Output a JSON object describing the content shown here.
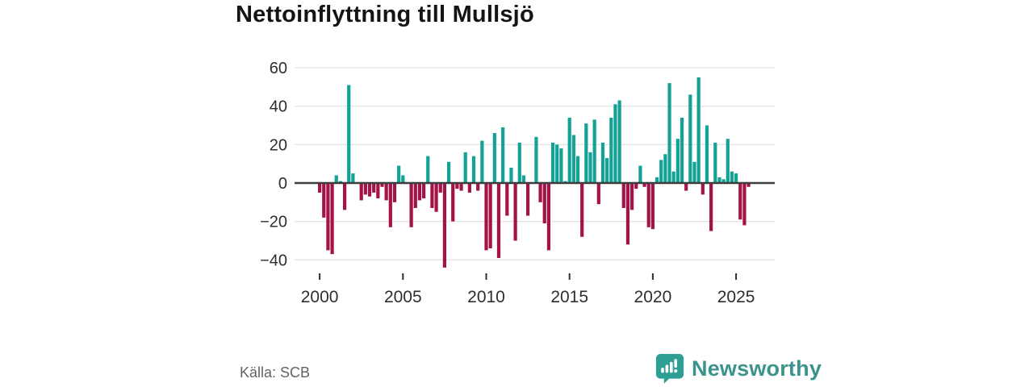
{
  "header": {
    "title": "Nettoinflyttning till Mullsjö"
  },
  "footer": {
    "source_label": "Källa: SCB",
    "brand": "Newsworthy"
  },
  "colors": {
    "positive_bar": "#13a295",
    "negative_bar": "#a31347",
    "zero_line": "#3d3d3d",
    "gridline": "#e4e4e4",
    "axis_text": "#2e2e2e",
    "brand_teal": "#3c938c",
    "logo_mark": "#2d9f94"
  },
  "chart_data": {
    "type": "bar",
    "title": "Nettoinflyttning till Mullsjö",
    "xlabel": "",
    "ylabel": "",
    "frequency": "quarterly",
    "x_start": "2000 Q1",
    "x_end": "2025 Q4",
    "values": [
      -5,
      -18,
      -35,
      -37,
      4,
      1,
      -14,
      51,
      5,
      0,
      -9,
      -6,
      -7,
      -5,
      -8,
      -2,
      -9,
      -23,
      -10,
      9,
      4,
      0,
      -23,
      -13,
      -9,
      -8,
      14,
      -13,
      -15,
      -5,
      -44,
      11,
      -20,
      -3,
      -4,
      16,
      -5,
      14,
      -4,
      22,
      -35,
      -34,
      26,
      -39,
      29,
      -17,
      8,
      -30,
      21,
      4,
      -17,
      0,
      24,
      -10,
      -21,
      -35,
      21,
      20,
      18,
      1,
      34,
      25,
      14,
      -28,
      31,
      16,
      33,
      -11,
      21,
      13,
      34,
      41,
      43,
      -13,
      -32,
      -14,
      -3,
      9,
      -2,
      -23,
      -24,
      3,
      12,
      15,
      52,
      6,
      23,
      34,
      -4,
      46,
      11,
      55,
      -6,
      30,
      -25,
      21,
      3,
      2,
      23,
      6,
      5,
      -19,
      -22,
      -2
    ],
    "x_tick_years": [
      2000,
      2005,
      2010,
      2015,
      2020,
      2025
    ],
    "y_ticks": [
      60,
      40,
      20,
      0,
      -20,
      -40
    ],
    "ylim": [
      -47,
      62
    ],
    "grid": "horizontal",
    "legend": "none",
    "source": "Källa: SCB"
  }
}
